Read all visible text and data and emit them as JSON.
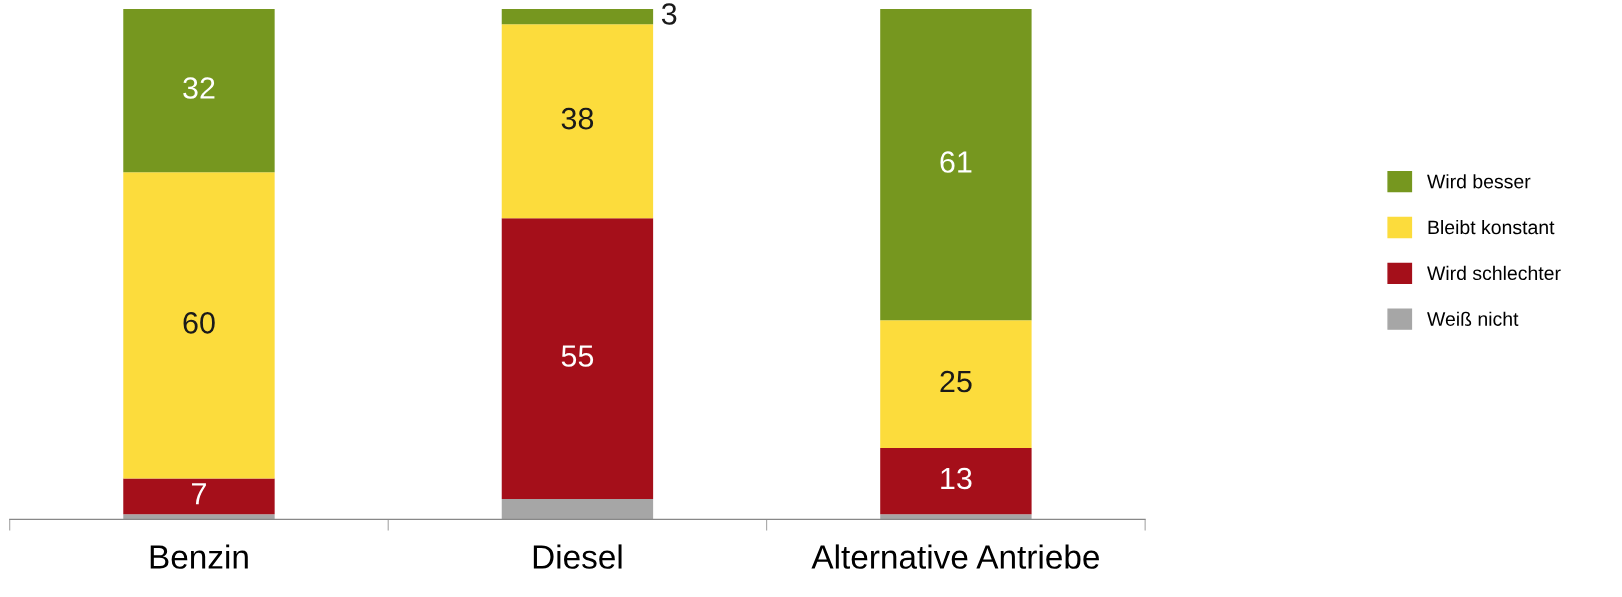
{
  "chart_data": {
    "type": "bar",
    "stacked": true,
    "categories": [
      "Benzin",
      "Diesel",
      "Alternative Antriebe"
    ],
    "ylim": [
      0,
      100
    ],
    "tick_labels": "x",
    "legend": "right",
    "grid": false,
    "series": [
      {
        "name": "Weiß nicht",
        "color": "#a6a6a6",
        "values": [
          1,
          4,
          1
        ],
        "value_labels": [
          null,
          null,
          null
        ]
      },
      {
        "name": "Wird schlechter",
        "color": "#a50f1a",
        "values": [
          7,
          55,
          13
        ],
        "value_labels": [
          "7",
          "55",
          "13"
        ]
      },
      {
        "name": "Bleibt konstant",
        "color": "#fcdc3c",
        "values": [
          60,
          38,
          25
        ],
        "value_labels": [
          "60",
          "38",
          "25"
        ]
      },
      {
        "name": "Wird besser",
        "color": "#76971f",
        "values": [
          32,
          3,
          61
        ],
        "value_labels": [
          "32",
          "3",
          "61"
        ]
      }
    ]
  }
}
